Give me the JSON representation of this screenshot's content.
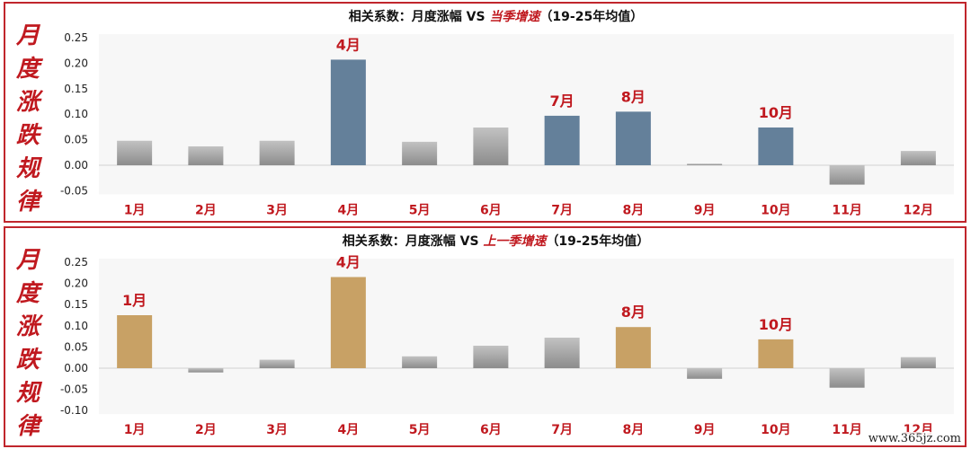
{
  "chart_data": [
    {
      "type": "bar",
      "title_prefix": "相关系数：月度涨幅 VS ",
      "title_em": "当季增速",
      "title_suffix": "（19-25年均值）",
      "side_label": [
        "月",
        "度",
        "涨",
        "跌",
        "规",
        "律"
      ],
      "categories": [
        "1月",
        "2月",
        "3月",
        "4月",
        "5月",
        "6月",
        "7月",
        "8月",
        "9月",
        "10月",
        "11月",
        "12月"
      ],
      "values": [
        0.048,
        0.037,
        0.048,
        0.207,
        0.046,
        0.074,
        0.097,
        0.105,
        0.003,
        0.074,
        -0.038,
        0.028
      ],
      "highlight": [
        false,
        false,
        false,
        true,
        false,
        false,
        true,
        true,
        false,
        true,
        false,
        false
      ],
      "annotations": [
        "",
        "",
        "",
        "4月",
        "",
        "",
        "7月",
        "8月",
        "",
        "10月",
        "",
        ""
      ],
      "yticks": [
        "0.25",
        "0.20",
        "0.15",
        "0.10",
        "0.05",
        "0.00",
        "-0.05"
      ],
      "ylim": [
        -0.05,
        0.25
      ],
      "highlight_color": "#64809a",
      "base_color": "#a6a6a6"
    },
    {
      "type": "bar",
      "title_prefix": "相关系数：月度涨幅 VS ",
      "title_em": "上一季增速",
      "title_suffix": "（19-25年均值）",
      "side_label": [
        "月",
        "度",
        "涨",
        "跌",
        "规",
        "律"
      ],
      "categories": [
        "1月",
        "2月",
        "3月",
        "4月",
        "5月",
        "6月",
        "7月",
        "8月",
        "9月",
        "10月",
        "11月",
        "12月"
      ],
      "values": [
        0.125,
        -0.01,
        0.02,
        0.215,
        0.028,
        0.053,
        0.072,
        0.097,
        -0.025,
        0.068,
        -0.046,
        0.026
      ],
      "highlight": [
        true,
        false,
        false,
        true,
        false,
        false,
        false,
        true,
        false,
        true,
        false,
        false
      ],
      "annotations": [
        "1月",
        "",
        "",
        "4月",
        "",
        "",
        "",
        "8月",
        "",
        "10月",
        "",
        ""
      ],
      "yticks": [
        "0.25",
        "0.20",
        "0.15",
        "0.10",
        "0.05",
        "0.00",
        "-0.05",
        "-0.10"
      ],
      "ylim": [
        -0.1,
        0.25
      ],
      "highlight_color": "#c8a165",
      "base_color": "#a6a6a6"
    }
  ],
  "colors": {
    "accent_red": "#c0191f",
    "border": "#c0262c"
  },
  "watermark": "www.365jz.com"
}
